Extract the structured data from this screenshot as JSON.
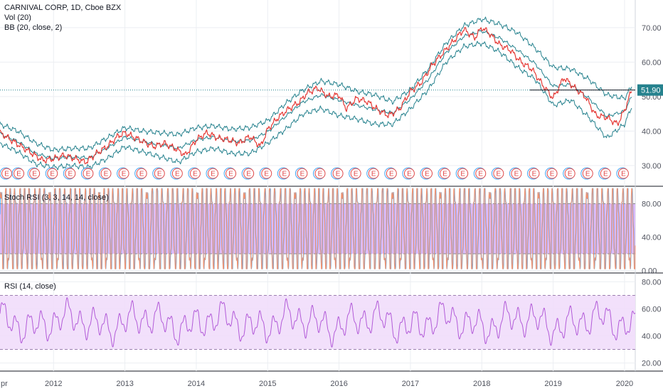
{
  "colors": {
    "close": "#e53935",
    "bb": "#26828e",
    "stoch_k": "#42a5f5",
    "stoch_d": "#f0926f",
    "stoch_band": "#d8b4f8",
    "rsi_line": "#b25ad8",
    "rsi_band": "#f1ddfb",
    "grid": "#eceef2",
    "axis_text": "#50535e",
    "price_tag": "#26828e",
    "earnings_red": "#e04646",
    "earnings_blue": "#42a5f5"
  },
  "legends": {
    "main_title": "CARNIVAL CORP, 1D, Cboe BZX",
    "volume": "Vol (20)",
    "bollinger": "BB (20, close, 2)",
    "stoch": "Stoch RSI (3, 3, 14, 14, close)",
    "rsi": "RSI (14, close)"
  },
  "last_price_label": "51.90",
  "earnings_marker": "E",
  "chart_data": [
    {
      "type": "line",
      "title": "CARNIVAL CORP, 1D, Cboe BZX",
      "x_ticks": [
        "pr",
        "2012",
        "2013",
        "2014",
        "2015",
        "2016",
        "2017",
        "2018",
        "2019",
        "2020"
      ],
      "x_range": [
        2011.25,
        2020.15
      ],
      "ylim": [
        24,
        78
      ],
      "y_ticks": [
        "30.00",
        "40.00",
        "50.00",
        "60.00",
        "70.00"
      ],
      "y_tick_values": [
        30,
        40,
        50,
        60,
        70
      ],
      "last_price": 51.9,
      "close_series": {
        "x": [
          2011.25,
          2011.4,
          2011.55,
          2011.7,
          2011.85,
          2012.0,
          2012.15,
          2012.3,
          2012.45,
          2012.6,
          2012.75,
          2012.9,
          2013.0,
          2013.1,
          2013.25,
          2013.4,
          2013.55,
          2013.7,
          2013.85,
          2014.0,
          2014.15,
          2014.3,
          2014.45,
          2014.6,
          2014.75,
          2014.9,
          2015.0,
          2015.15,
          2015.3,
          2015.45,
          2015.55,
          2015.7,
          2015.85,
          2016.0,
          2016.1,
          2016.25,
          2016.4,
          2016.55,
          2016.7,
          2016.85,
          2017.0,
          2017.15,
          2017.3,
          2017.45,
          2017.6,
          2017.75,
          2017.9,
          2018.0,
          2018.1,
          2018.25,
          2018.4,
          2018.55,
          2018.7,
          2018.85,
          2019.0,
          2019.15,
          2019.3,
          2019.45,
          2019.6,
          2019.75,
          2019.9,
          2020.0,
          2020.1
        ],
        "y": [
          39.5,
          37.5,
          35.5,
          33.5,
          31.5,
          32.0,
          33.0,
          32.0,
          31.0,
          33.5,
          35.5,
          38.5,
          39.5,
          38.5,
          37.0,
          35.5,
          36.5,
          35.0,
          33.0,
          37.5,
          39.5,
          38.0,
          37.5,
          36.5,
          38.5,
          35.5,
          40.5,
          44.0,
          46.5,
          48.5,
          51.0,
          52.5,
          50.0,
          50.5,
          46.5,
          49.5,
          48.5,
          46.0,
          44.5,
          46.5,
          51.5,
          54.0,
          59.0,
          62.5,
          66.0,
          69.5,
          67.0,
          70.0,
          68.5,
          65.0,
          63.5,
          60.0,
          58.0,
          53.5,
          49.5,
          55.5,
          52.5,
          50.0,
          44.5,
          44.0,
          42.0,
          46.0,
          51.9
        ]
      },
      "bb_upper": {
        "x": [
          2011.25,
          2011.5,
          2011.75,
          2012.0,
          2012.25,
          2012.5,
          2012.75,
          2013.0,
          2013.25,
          2013.5,
          2013.75,
          2014.0,
          2014.25,
          2014.5,
          2014.75,
          2015.0,
          2015.25,
          2015.5,
          2015.75,
          2016.0,
          2016.25,
          2016.5,
          2016.75,
          2017.0,
          2017.25,
          2017.5,
          2017.75,
          2018.0,
          2018.25,
          2018.5,
          2018.75,
          2019.0,
          2019.25,
          2019.5,
          2019.75,
          2020.0,
          2020.1
        ],
        "y": [
          42.0,
          40.0,
          36.5,
          34.5,
          35.0,
          35.0,
          38.0,
          41.0,
          40.0,
          39.5,
          39.0,
          41.0,
          41.5,
          40.5,
          41.0,
          43.0,
          48.0,
          52.0,
          54.5,
          53.5,
          51.5,
          50.5,
          48.5,
          52.0,
          58.0,
          65.5,
          70.5,
          72.5,
          71.0,
          68.5,
          64.0,
          58.5,
          58.0,
          55.0,
          50.5,
          49.5,
          53.0
        ]
      },
      "bb_lower": {
        "x": [
          2011.25,
          2011.5,
          2011.75,
          2012.0,
          2012.25,
          2012.5,
          2012.75,
          2013.0,
          2013.25,
          2013.5,
          2013.75,
          2014.0,
          2014.25,
          2014.5,
          2014.75,
          2015.0,
          2015.25,
          2015.5,
          2015.75,
          2016.0,
          2016.25,
          2016.5,
          2016.75,
          2017.0,
          2017.25,
          2017.5,
          2017.75,
          2018.0,
          2018.25,
          2018.5,
          2018.75,
          2019.0,
          2019.25,
          2019.5,
          2019.75,
          2020.0,
          2020.1
        ],
        "y": [
          36.5,
          34.0,
          30.5,
          29.5,
          30.0,
          29.5,
          32.0,
          35.5,
          34.0,
          32.5,
          31.0,
          34.0,
          35.0,
          33.5,
          33.5,
          36.5,
          40.5,
          45.0,
          46.5,
          44.5,
          43.5,
          42.0,
          42.0,
          46.5,
          52.0,
          60.0,
          64.5,
          65.5,
          63.0,
          58.5,
          55.0,
          47.5,
          49.0,
          44.0,
          38.0,
          42.0,
          47.0
        ]
      },
      "earnings_x": [
        2011.33,
        2011.5,
        2011.72,
        2011.97,
        2012.22,
        2012.47,
        2012.72,
        2012.97,
        2013.22,
        2013.47,
        2013.72,
        2013.97,
        2014.22,
        2014.47,
        2014.72,
        2014.97,
        2015.22,
        2015.47,
        2015.72,
        2015.97,
        2016.22,
        2016.47,
        2016.72,
        2016.97,
        2017.22,
        2017.47,
        2017.72,
        2017.97,
        2018.22,
        2018.47,
        2018.72,
        2018.97,
        2019.22,
        2019.47,
        2019.72,
        2019.97
      ]
    },
    {
      "type": "line",
      "title": "Stoch RSI (3, 3, 14, 14, close)",
      "ylim": [
        -3,
        100
      ],
      "y_ticks": [
        "80.00",
        "40.00",
        "0.00"
      ],
      "y_tick_values": [
        80,
        40,
        0
      ],
      "band": [
        20,
        80
      ],
      "series": [
        {
          "name": "",
          "oscillator": "stoch",
          "cycles": 130,
          "phase": 0.0
        },
        {
          "name": "",
          "oscillator": "stoch",
          "cycles": 130,
          "phase": 0.35
        }
      ]
    },
    {
      "type": "line",
      "title": "RSI (14, close)",
      "ylim": [
        14,
        86
      ],
      "y_ticks": [
        "80.00",
        "60.00",
        "40.00",
        "20.00"
      ],
      "y_tick_values": [
        80,
        60,
        40,
        20
      ],
      "band": [
        30,
        70
      ],
      "series": [
        {
          "name": "",
          "oscillator": "rsi",
          "mean": 50,
          "amplitude": 15
        }
      ]
    }
  ]
}
